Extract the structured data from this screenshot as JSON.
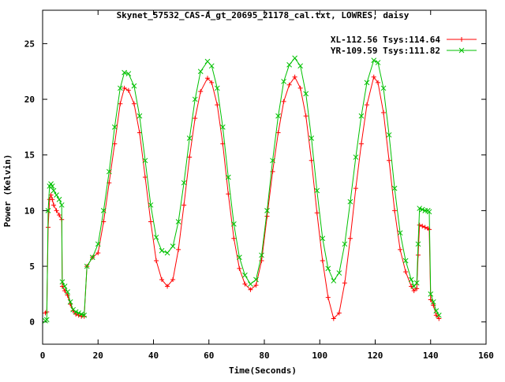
{
  "chart_data": {
    "type": "line",
    "title": "Skynet_57532_CAS-A_gt_20695_21178_cal.txt, LOWRES, daisy",
    "xlabel": "Time(Seconds)",
    "ylabel": "Power (Kelvin)",
    "xlim": [
      0,
      160
    ],
    "ylim": [
      -2,
      28
    ],
    "xticks": [
      0,
      20,
      40,
      60,
      80,
      100,
      120,
      140,
      160
    ],
    "yticks": [
      0,
      5,
      10,
      15,
      20,
      25
    ],
    "grid": false,
    "legend_position": "top-right",
    "series": [
      {
        "name": "XL-112.56 Tsys:114.64",
        "color": "#ff0000",
        "marker": "plus",
        "x": [
          1,
          1.5,
          2,
          2.5,
          3,
          3.5,
          4,
          5,
          6,
          6.9,
          7.1,
          8,
          9,
          10,
          11,
          12,
          13,
          14,
          15,
          16,
          18,
          20,
          22,
          24,
          26,
          28,
          29.5,
          31,
          33,
          35,
          37,
          39,
          41,
          43,
          45,
          47,
          49,
          51,
          53,
          55,
          57,
          59.5,
          61,
          63,
          65,
          67,
          69,
          71,
          73,
          75,
          77,
          79,
          81,
          83,
          85,
          87,
          89,
          91,
          93,
          95,
          97,
          99,
          101,
          103,
          105,
          107,
          109,
          111,
          113,
          115,
          117,
          119.5,
          121,
          123,
          125,
          127,
          129,
          131,
          133,
          134,
          135,
          135.5,
          136,
          137,
          138,
          139,
          139.5,
          140,
          141,
          142,
          143
        ],
        "values": [
          0.8,
          0.9,
          8.5,
          11.0,
          11.4,
          11.0,
          10.5,
          10.0,
          9.6,
          9.2,
          3.2,
          2.8,
          2.4,
          1.6,
          1.0,
          0.7,
          0.6,
          0.5,
          0.5,
          5.0,
          5.8,
          6.2,
          9.0,
          12.5,
          16.0,
          19.6,
          21.0,
          20.8,
          19.6,
          17.0,
          13.0,
          9.0,
          5.5,
          3.8,
          3.2,
          3.8,
          6.5,
          10.5,
          14.8,
          18.3,
          20.7,
          21.9,
          21.5,
          19.5,
          16.0,
          11.5,
          7.5,
          4.8,
          3.4,
          2.9,
          3.3,
          5.5,
          9.5,
          13.5,
          17.0,
          19.8,
          21.3,
          22.0,
          21.0,
          18.5,
          14.5,
          9.8,
          5.5,
          2.2,
          0.3,
          0.8,
          3.5,
          7.5,
          12.0,
          16.0,
          19.5,
          22.0,
          21.5,
          18.8,
          14.5,
          10.0,
          6.5,
          4.5,
          3.2,
          2.8,
          3.0,
          6.0,
          8.7,
          8.6,
          8.5,
          8.4,
          8.3,
          2.0,
          1.5,
          0.6,
          0.3
        ]
      },
      {
        "name": "YR-109.59 Tsys:111.82",
        "color": "#00c000",
        "marker": "cross",
        "x": [
          1,
          1.5,
          2,
          2.5,
          3,
          3.5,
          4,
          5,
          6,
          6.9,
          7.1,
          8,
          9,
          10,
          11,
          12,
          13,
          14,
          15,
          16,
          18,
          20,
          22,
          24,
          26,
          28,
          29.5,
          31,
          33,
          35,
          37,
          39,
          41,
          43,
          45,
          47,
          49,
          51,
          53,
          55,
          57,
          59.5,
          61,
          63,
          65,
          67,
          69,
          71,
          73,
          75,
          77,
          79,
          81,
          83,
          85,
          87,
          89,
          91,
          93,
          95,
          97,
          99,
          101,
          103,
          105,
          107,
          109,
          111,
          113,
          115,
          117,
          119.5,
          121,
          123,
          125,
          127,
          129,
          131,
          133,
          134,
          135,
          135.5,
          136,
          137,
          138,
          139,
          139.5,
          140,
          141,
          142,
          143
        ],
        "values": [
          0.1,
          0.2,
          10.0,
          12.2,
          12.4,
          12.2,
          11.8,
          11.4,
          11.0,
          10.5,
          3.6,
          3.2,
          2.7,
          1.8,
          1.1,
          0.9,
          0.8,
          0.7,
          0.6,
          5.0,
          5.8,
          7.0,
          10.0,
          13.5,
          17.5,
          21.0,
          22.4,
          22.3,
          21.2,
          18.5,
          14.5,
          10.5,
          7.6,
          6.4,
          6.2,
          6.8,
          9.0,
          12.5,
          16.5,
          20.0,
          22.5,
          23.4,
          23.0,
          21.0,
          17.5,
          13.0,
          8.8,
          5.8,
          4.2,
          3.4,
          3.8,
          6.0,
          10.0,
          14.5,
          18.5,
          21.6,
          23.1,
          23.7,
          23.0,
          20.5,
          16.5,
          11.8,
          7.5,
          4.8,
          3.7,
          4.4,
          7.0,
          10.8,
          14.8,
          18.5,
          21.5,
          23.5,
          23.3,
          21.0,
          16.8,
          12.0,
          8.0,
          5.5,
          3.8,
          3.2,
          3.5,
          7.0,
          10.2,
          10.1,
          10.0,
          10.0,
          9.9,
          2.5,
          1.8,
          1.0,
          0.6
        ]
      }
    ]
  }
}
